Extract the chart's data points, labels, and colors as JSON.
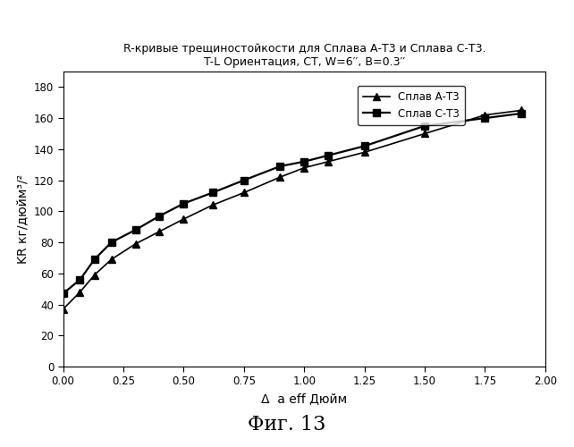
{
  "title_line1": "R-кривые трещиностойкости для Сплава А-Т3 и Сплава С-Т3.",
  "title_line2": "T-L Ориентация, CT, W=6′′, B=0.3′′",
  "xlabel": "Δ  a eff Дюйм",
  "ylabel": "KR кг/дюйм³/²",
  "xlim": [
    0.0,
    2.0
  ],
  "ylim": [
    0,
    190
  ],
  "yticks": [
    0,
    20,
    40,
    60,
    80,
    100,
    120,
    140,
    160,
    180
  ],
  "xticks": [
    0.0,
    0.25,
    0.5,
    0.75,
    1.0,
    1.25,
    1.5,
    1.75,
    2.0
  ],
  "series_A": {
    "label": "Сплав А-Т3",
    "color": "#000000",
    "marker": "^",
    "x": [
      0.0,
      0.07,
      0.13,
      0.2,
      0.3,
      0.4,
      0.5,
      0.62,
      0.75,
      0.9,
      1.0,
      1.1,
      1.25,
      1.5,
      1.75,
      1.9
    ],
    "y": [
      37,
      48,
      59,
      69,
      79,
      87,
      95,
      104,
      112,
      122,
      128,
      132,
      138,
      150,
      162,
      165
    ]
  },
  "series_C": {
    "label": "Сплав С-Т3",
    "color": "#000000",
    "marker": "s",
    "x": [
      0.0,
      0.07,
      0.13,
      0.2,
      0.3,
      0.4,
      0.5,
      0.62,
      0.75,
      0.9,
      1.0,
      1.1,
      1.25,
      1.5,
      1.75,
      1.9
    ],
    "y": [
      47,
      56,
      69,
      80,
      88,
      97,
      105,
      112,
      120,
      129,
      132,
      136,
      142,
      155,
      160,
      163
    ]
  },
  "fig_caption": "Фиг. 13",
  "background_color": "#ffffff"
}
